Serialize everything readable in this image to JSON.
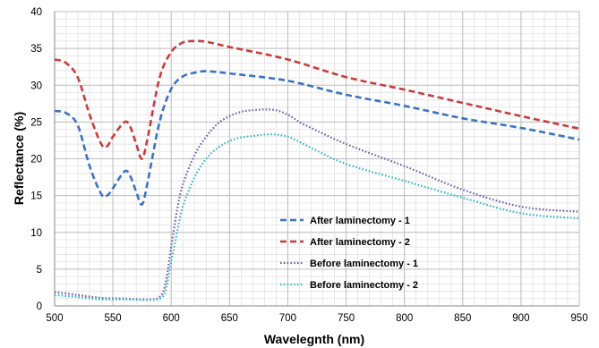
{
  "chart_data": {
    "type": "line",
    "title": "",
    "xlabel": "Wavelegnth (nm)",
    "ylabel": "Reflectance (%)",
    "xlim": [
      500,
      950
    ],
    "ylim": [
      0,
      40
    ],
    "xticks": [
      500,
      550,
      600,
      650,
      700,
      750,
      800,
      850,
      900,
      950
    ],
    "yticks": [
      0,
      5,
      10,
      15,
      20,
      25,
      30,
      35,
      40
    ],
    "grid": true,
    "legend_position": "center-right",
    "series": [
      {
        "name": "After laminectomy - 1",
        "color": "#3a73c2",
        "style": "dashed",
        "points": [
          [
            500,
            26.5
          ],
          [
            510,
            26.2
          ],
          [
            520,
            24.5
          ],
          [
            530,
            19
          ],
          [
            540,
            15.2
          ],
          [
            545,
            15
          ],
          [
            550,
            16
          ],
          [
            560,
            18.3
          ],
          [
            565,
            17.6
          ],
          [
            570,
            15.5
          ],
          [
            575,
            13.8
          ],
          [
            580,
            17
          ],
          [
            590,
            25
          ],
          [
            600,
            29.5
          ],
          [
            610,
            31.2
          ],
          [
            620,
            31.7
          ],
          [
            630,
            31.9
          ],
          [
            650,
            31.6
          ],
          [
            700,
            30.6
          ],
          [
            750,
            28.7
          ],
          [
            800,
            27.2
          ],
          [
            850,
            25.5
          ],
          [
            900,
            24.2
          ],
          [
            950,
            22.6
          ]
        ]
      },
      {
        "name": "After laminectomy - 2",
        "color": "#c83c3c",
        "style": "dashed",
        "points": [
          [
            500,
            33.5
          ],
          [
            510,
            33
          ],
          [
            520,
            31
          ],
          [
            530,
            26
          ],
          [
            540,
            22
          ],
          [
            545,
            21.7
          ],
          [
            550,
            23
          ],
          [
            560,
            25
          ],
          [
            565,
            24.3
          ],
          [
            570,
            22
          ],
          [
            575,
            20
          ],
          [
            580,
            23
          ],
          [
            590,
            31
          ],
          [
            600,
            34.5
          ],
          [
            610,
            35.8
          ],
          [
            620,
            36
          ],
          [
            630,
            35.9
          ],
          [
            650,
            35.2
          ],
          [
            700,
            33.5
          ],
          [
            750,
            31.1
          ],
          [
            800,
            29.4
          ],
          [
            850,
            27.6
          ],
          [
            900,
            25.8
          ],
          [
            950,
            24.1
          ]
        ]
      },
      {
        "name": "Before laminectomy - 1",
        "color": "#7060a8",
        "style": "dotted",
        "points": [
          [
            500,
            1.9
          ],
          [
            520,
            1.5
          ],
          [
            540,
            1.1
          ],
          [
            560,
            1.0
          ],
          [
            580,
            0.9
          ],
          [
            590,
            1.2
          ],
          [
            595,
            3
          ],
          [
            600,
            8
          ],
          [
            605,
            13
          ],
          [
            610,
            16.5
          ],
          [
            620,
            20.5
          ],
          [
            630,
            23
          ],
          [
            640,
            24.8
          ],
          [
            650,
            25.8
          ],
          [
            660,
            26.4
          ],
          [
            670,
            26.6
          ],
          [
            680,
            26.7
          ],
          [
            690,
            26.6
          ],
          [
            700,
            26
          ],
          [
            710,
            25
          ],
          [
            720,
            24.2
          ],
          [
            750,
            22
          ],
          [
            800,
            19
          ],
          [
            850,
            15.8
          ],
          [
            900,
            13.5
          ],
          [
            950,
            12.8
          ]
        ]
      },
      {
        "name": "Before laminectomy - 2",
        "color": "#3ab5c8",
        "style": "dotted",
        "points": [
          [
            500,
            1.5
          ],
          [
            520,
            1.2
          ],
          [
            540,
            0.9
          ],
          [
            560,
            0.9
          ],
          [
            580,
            0.8
          ],
          [
            590,
            1.0
          ],
          [
            595,
            2
          ],
          [
            600,
            6
          ],
          [
            605,
            10
          ],
          [
            610,
            13.5
          ],
          [
            620,
            17.5
          ],
          [
            630,
            20
          ],
          [
            640,
            21.5
          ],
          [
            650,
            22.4
          ],
          [
            660,
            22.9
          ],
          [
            670,
            23.1
          ],
          [
            680,
            23.3
          ],
          [
            690,
            23.3
          ],
          [
            700,
            23
          ],
          [
            710,
            22.3
          ],
          [
            720,
            21.5
          ],
          [
            750,
            19.3
          ],
          [
            800,
            17
          ],
          [
            850,
            14.7
          ],
          [
            900,
            12.6
          ],
          [
            950,
            11.9
          ]
        ]
      }
    ]
  }
}
